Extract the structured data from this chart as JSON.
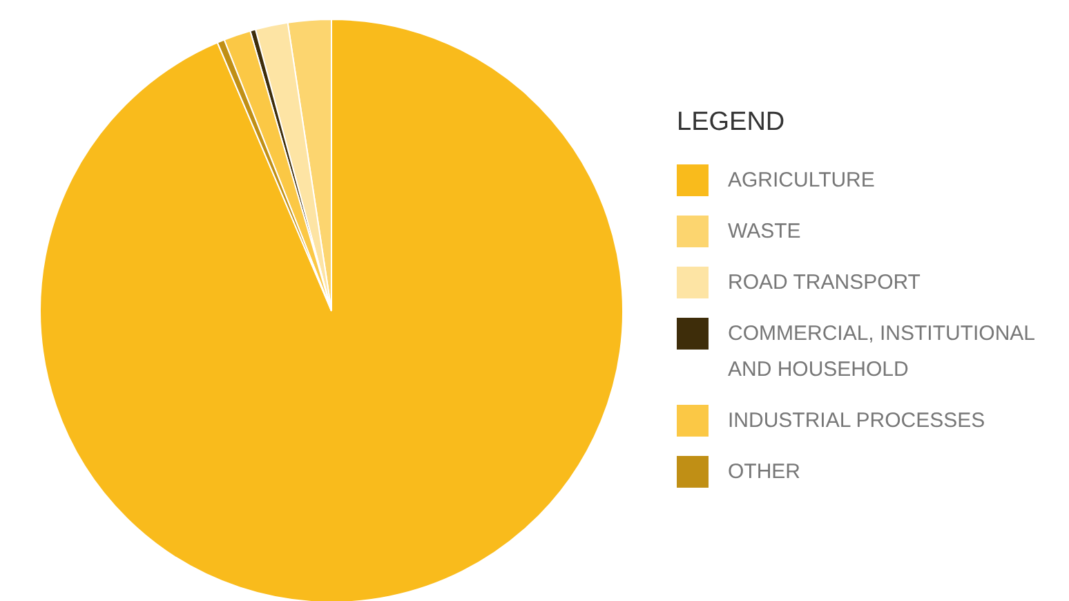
{
  "chart_data": {
    "type": "pie",
    "legend_title": "LEGEND",
    "legend": "right",
    "categories": [
      "AGRICULTURE",
      "WASTE",
      "ROAD TRANSPORT",
      "COMMERCIAL, INSTITUTIONAL AND HOUSEHOLD",
      "INDUSTRIAL PROCESSES",
      "OTHER"
    ],
    "values": [
      93.6,
      2.4,
      1.8,
      0.3,
      1.5,
      0.4
    ],
    "colors": [
      "#f9bb1c",
      "#fcd56f",
      "#fde4a4",
      "#3e2d0a",
      "#fbc845",
      "#c08f15"
    ]
  }
}
